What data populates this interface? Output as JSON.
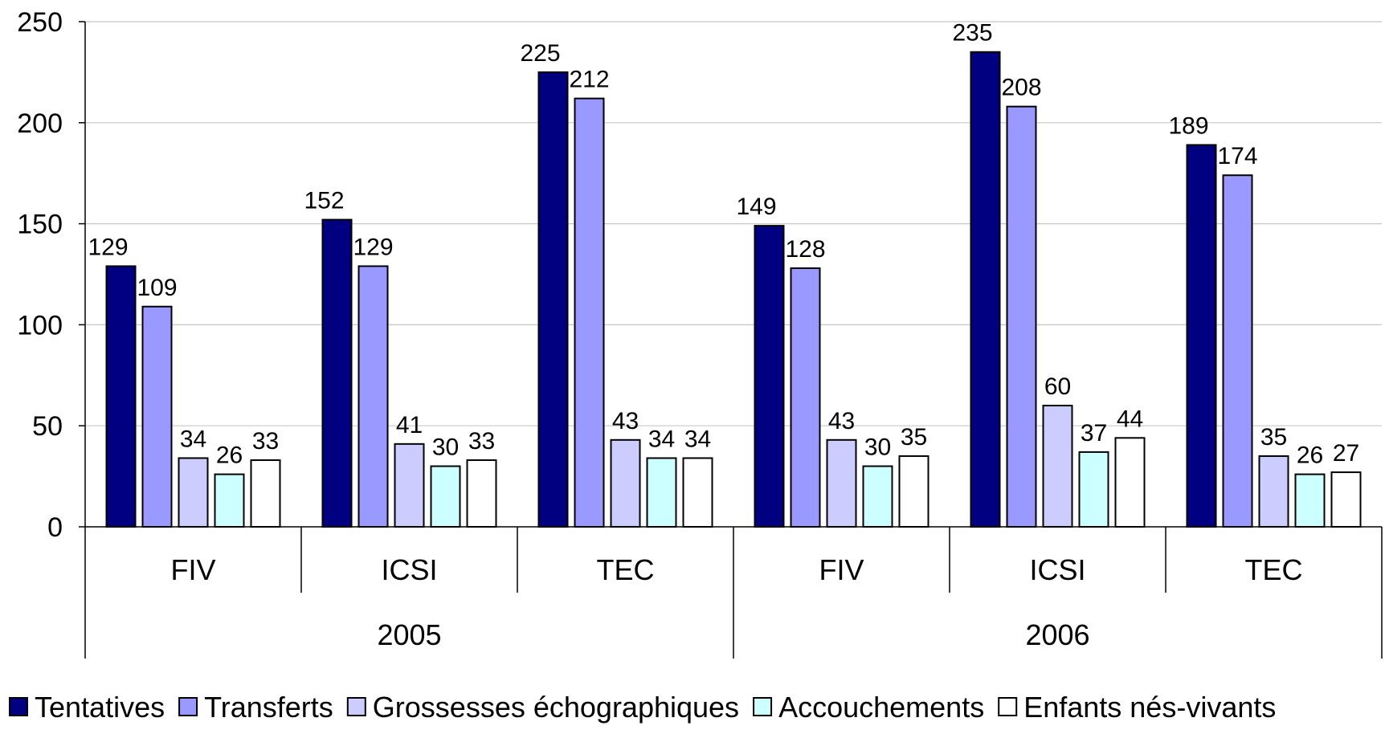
{
  "chart_data": {
    "type": "bar",
    "title": "",
    "xlabel": "",
    "ylabel": "",
    "ylim": [
      0,
      250
    ],
    "yticks": [
      0,
      50,
      100,
      150,
      200,
      250
    ],
    "grid": true,
    "legend_position": "bottom",
    "groups": [
      {
        "label": "2005",
        "categories": [
          "FIV",
          "ICSI",
          "TEC"
        ]
      },
      {
        "label": "2006",
        "categories": [
          "FIV",
          "ICSI",
          "TEC"
        ]
      }
    ],
    "categories": [
      "FIV",
      "ICSI",
      "TEC",
      "FIV",
      "ICSI",
      "TEC"
    ],
    "series": [
      {
        "name": "Tentatives",
        "color": "#000080",
        "values": [
          129,
          152,
          225,
          149,
          235,
          189
        ]
      },
      {
        "name": "Transferts",
        "color": "#9999ff",
        "values": [
          109,
          129,
          212,
          128,
          208,
          174
        ]
      },
      {
        "name": "Grossesses échographiques",
        "color": "#ccccff",
        "values": [
          34,
          41,
          43,
          43,
          60,
          35
        ]
      },
      {
        "name": "Accouchements",
        "color": "#ccffff",
        "values": [
          26,
          30,
          34,
          30,
          37,
          26
        ]
      },
      {
        "name": "Enfants nés-vivants",
        "color": "#ffffff",
        "values": [
          33,
          33,
          34,
          35,
          44,
          27
        ]
      }
    ]
  }
}
